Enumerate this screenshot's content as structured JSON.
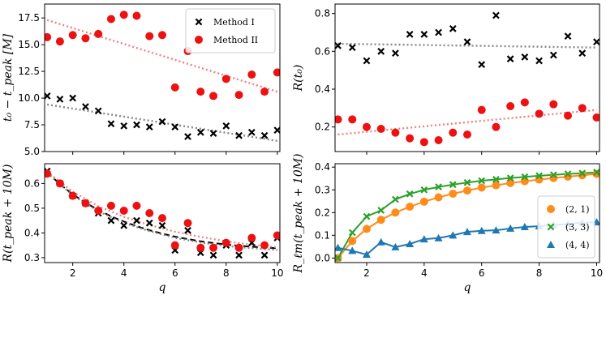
{
  "chart_data": [
    {
      "id": "p1",
      "type": "scatter",
      "xlabel": "",
      "ylabel": "t₀ − t_peak [M]",
      "xlim": [
        0.9,
        10.1
      ],
      "ylim": [
        5.0,
        18.8
      ],
      "xticks": [
        2,
        4,
        6,
        8,
        10
      ],
      "yticks": [
        5.0,
        7.5,
        10.0,
        12.5,
        15.0,
        17.5
      ],
      "ytick_labels": [
        "5.0",
        "7.5",
        "10.0",
        "12.5",
        "15.0",
        "17.5"
      ],
      "show_xtick_labels": false,
      "legend": {
        "position": "top-right",
        "entries": [
          {
            "label": "Method I",
            "marker": "x",
            "color": "#000000"
          },
          {
            "label": "Method II",
            "marker": "o",
            "color": "#ee1111"
          }
        ]
      },
      "series": [
        {
          "name": "Method I",
          "marker": "x",
          "color": "#000000",
          "x": [
            1,
            1.5,
            2,
            2.5,
            3,
            3.5,
            4,
            4.5,
            5,
            5.5,
            6,
            6.5,
            7,
            7.5,
            8,
            8.5,
            9,
            9.5,
            10
          ],
          "y": [
            10.2,
            9.9,
            10.0,
            9.2,
            8.8,
            7.6,
            7.4,
            7.5,
            7.3,
            7.8,
            7.3,
            6.4,
            6.8,
            6.7,
            7.4,
            6.5,
            6.8,
            6.5,
            7.0
          ]
        },
        {
          "name": "Method II",
          "marker": "o",
          "color": "#ee1111",
          "x": [
            1,
            1.5,
            2,
            2.5,
            3,
            3.5,
            4,
            4.5,
            5,
            5.5,
            6,
            6.5,
            7,
            7.5,
            8,
            8.5,
            9,
            9.5,
            10
          ],
          "y": [
            15.7,
            15.3,
            15.9,
            15.6,
            16.0,
            17.4,
            17.8,
            17.7,
            15.8,
            15.9,
            11.0,
            14.4,
            10.6,
            10.2,
            11.8,
            10.3,
            12.2,
            10.6,
            12.4
          ]
        }
      ],
      "fits": [
        {
          "color": "#888888",
          "x": [
            1,
            10
          ],
          "y": [
            9.4,
            6.0
          ]
        },
        {
          "color": "#f08080",
          "x": [
            1,
            10
          ],
          "y": [
            17.3,
            10.6
          ]
        }
      ]
    },
    {
      "id": "p2",
      "type": "scatter",
      "xlabel": "",
      "ylabel": "R(t₀)",
      "xlim": [
        0.9,
        10.1
      ],
      "ylim": [
        0.07,
        0.85
      ],
      "xticks": [
        2,
        4,
        6,
        8,
        10
      ],
      "yticks": [
        0.2,
        0.4,
        0.6,
        0.8
      ],
      "ytick_labels": [
        "0.2",
        "0.4",
        "0.6",
        "0.8"
      ],
      "show_xtick_labels": false,
      "series": [
        {
          "name": "Method I",
          "marker": "x",
          "color": "#000000",
          "x": [
            1,
            1.5,
            2,
            2.5,
            3,
            3.5,
            4,
            4.5,
            5,
            5.5,
            6,
            6.5,
            7,
            7.5,
            8,
            8.5,
            9,
            9.5,
            10
          ],
          "y": [
            0.63,
            0.62,
            0.55,
            0.6,
            0.59,
            0.69,
            0.69,
            0.7,
            0.72,
            0.65,
            0.53,
            0.79,
            0.56,
            0.57,
            0.55,
            0.58,
            0.68,
            0.59,
            0.65
          ]
        },
        {
          "name": "Method II",
          "marker": "o",
          "color": "#ee1111",
          "x": [
            1,
            1.5,
            2,
            2.5,
            3,
            3.5,
            4,
            4.5,
            5,
            5.5,
            6,
            6.5,
            7,
            7.5,
            8,
            8.5,
            9,
            9.5,
            10
          ],
          "y": [
            0.24,
            0.24,
            0.2,
            0.19,
            0.17,
            0.14,
            0.12,
            0.13,
            0.17,
            0.16,
            0.29,
            0.2,
            0.31,
            0.33,
            0.27,
            0.32,
            0.26,
            0.3,
            0.25
          ]
        }
      ],
      "fits": [
        {
          "color": "#888888",
          "x": [
            1,
            10
          ],
          "y": [
            0.64,
            0.62
          ]
        },
        {
          "color": "#f08080",
          "x": [
            1,
            10
          ],
          "y": [
            0.16,
            0.29
          ]
        }
      ]
    },
    {
      "id": "p3",
      "type": "scatter",
      "xlabel": "q",
      "ylabel": "R(t_peak + 10M)",
      "xlim": [
        0.9,
        10.1
      ],
      "ylim": [
        0.28,
        0.68
      ],
      "xticks": [
        2,
        4,
        6,
        8,
        10
      ],
      "xtick_labels": [
        "2",
        "4",
        "6",
        "8",
        "10"
      ],
      "yticks": [
        0.3,
        0.4,
        0.5,
        0.6
      ],
      "ytick_labels": [
        "0.3",
        "0.4",
        "0.5",
        "0.6"
      ],
      "show_xtick_labels": true,
      "series": [
        {
          "name": "Method I",
          "marker": "x",
          "color": "#000000",
          "x": [
            1,
            1.5,
            2,
            2.5,
            3,
            3.5,
            4,
            4.5,
            5,
            5.5,
            6,
            6.5,
            7,
            7.5,
            8,
            8.5,
            9,
            9.5,
            10
          ],
          "y": [
            0.65,
            0.6,
            0.55,
            0.52,
            0.48,
            0.45,
            0.43,
            0.45,
            0.44,
            0.43,
            0.33,
            0.41,
            0.32,
            0.31,
            0.35,
            0.31,
            0.36,
            0.31,
            0.38
          ]
        },
        {
          "name": "Method II",
          "marker": "o",
          "color": "#ee1111",
          "x": [
            1,
            1.5,
            2,
            2.5,
            3,
            3.5,
            4,
            4.5,
            5,
            5.5,
            6,
            6.5,
            7,
            7.5,
            8,
            8.5,
            9,
            9.5,
            10
          ],
          "y": [
            0.64,
            0.6,
            0.55,
            0.52,
            0.49,
            0.51,
            0.49,
            0.51,
            0.48,
            0.46,
            0.35,
            0.44,
            0.34,
            0.34,
            0.36,
            0.34,
            0.38,
            0.35,
            0.39
          ]
        }
      ],
      "fits": [
        {
          "color": "#000000",
          "dash": "7,4",
          "width": 2,
          "x": [
            1,
            1.5,
            2,
            2.5,
            3,
            3.5,
            4,
            4.5,
            5,
            5.5,
            6,
            6.5,
            7,
            7.5,
            8,
            8.5,
            9,
            9.5,
            10
          ],
          "y": [
            0.645,
            0.597,
            0.556,
            0.522,
            0.493,
            0.467,
            0.446,
            0.427,
            0.411,
            0.397,
            0.385,
            0.375,
            0.366,
            0.359,
            0.353,
            0.348,
            0.344,
            0.341,
            0.338
          ]
        },
        {
          "color": "#888888",
          "dash": "2,3",
          "width": 2.2,
          "x": [
            1,
            2,
            3,
            4,
            5,
            6,
            7,
            8,
            9,
            10
          ],
          "y": [
            0.642,
            0.552,
            0.487,
            0.441,
            0.407,
            0.38,
            0.361,
            0.347,
            0.338,
            0.331
          ]
        },
        {
          "color": "#f08080",
          "dash": "2,3",
          "width": 2.2,
          "x": [
            1,
            2,
            3,
            4,
            5,
            6,
            7,
            8,
            9,
            10
          ],
          "y": [
            0.648,
            0.567,
            0.508,
            0.465,
            0.432,
            0.405,
            0.384,
            0.366,
            0.352,
            0.342
          ]
        }
      ]
    },
    {
      "id": "p4",
      "type": "line",
      "xlabel": "q",
      "ylabel": "R_ℓm(t_peak + 10M)",
      "xlim": [
        0.9,
        10.1
      ],
      "ylim": [
        -0.02,
        0.415
      ],
      "xticks": [
        2,
        4,
        6,
        8,
        10
      ],
      "xtick_labels": [
        "2",
        "4",
        "6",
        "8",
        "10"
      ],
      "yticks": [
        0.0,
        0.1,
        0.2,
        0.3,
        0.4
      ],
      "ytick_labels": [
        "0.0",
        "0.1",
        "0.2",
        "0.3",
        "0.4"
      ],
      "show_xtick_labels": true,
      "legend": {
        "position": "bottom-right",
        "entries": [
          {
            "label": "(2, 1)",
            "marker": "o",
            "color": "#ff8c1a"
          },
          {
            "label": "(3, 3)",
            "marker": "x",
            "color": "#2ca02c"
          },
          {
            "label": "(4, 4)",
            "marker": "^",
            "color": "#1f77b4"
          }
        ]
      },
      "series": [
        {
          "name": "(2, 1)",
          "marker": "o",
          "color": "#ff8c1a",
          "line": true,
          "x": [
            1,
            1.5,
            2,
            2.5,
            3,
            3.5,
            4,
            4.5,
            5,
            5.5,
            6,
            6.5,
            7,
            7.5,
            8,
            8.5,
            9,
            9.5,
            10
          ],
          "y": [
            0.0,
            0.075,
            0.128,
            0.168,
            0.2,
            0.226,
            0.248,
            0.267,
            0.283,
            0.297,
            0.31,
            0.32,
            0.33,
            0.338,
            0.345,
            0.352,
            0.358,
            0.364,
            0.37
          ]
        },
        {
          "name": "(3, 3)",
          "marker": "x",
          "color": "#2ca02c",
          "line": true,
          "x": [
            1,
            1.5,
            2,
            2.5,
            3,
            3.5,
            4,
            4.5,
            5,
            5.5,
            6,
            6.5,
            7,
            7.5,
            8,
            8.5,
            9,
            9.5,
            10
          ],
          "y": [
            0.0,
            0.112,
            0.183,
            0.21,
            0.258,
            0.282,
            0.3,
            0.313,
            0.323,
            0.332,
            0.34,
            0.346,
            0.352,
            0.357,
            0.362,
            0.366,
            0.37,
            0.373,
            0.377
          ]
        },
        {
          "name": "(4, 4)",
          "marker": "^",
          "color": "#1f77b4",
          "line": true,
          "x": [
            1,
            1.5,
            2,
            2.5,
            3,
            3.5,
            4,
            4.5,
            5,
            5.5,
            6,
            6.5,
            7,
            7.5,
            8,
            8.5,
            9,
            9.5,
            10
          ],
          "y": [
            0.045,
            0.032,
            0.015,
            0.07,
            0.048,
            0.062,
            0.083,
            0.088,
            0.1,
            0.115,
            0.12,
            0.122,
            0.13,
            0.137,
            0.14,
            0.145,
            0.15,
            0.155,
            0.158
          ]
        }
      ]
    }
  ]
}
